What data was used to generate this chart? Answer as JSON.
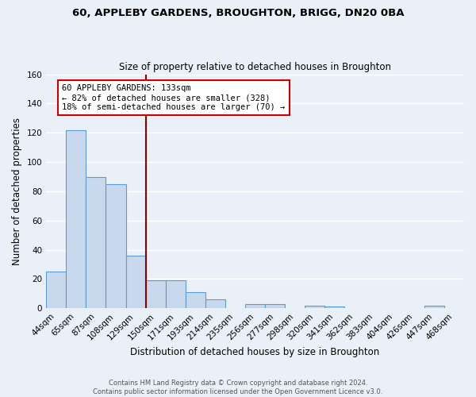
{
  "title": "60, APPLEBY GARDENS, BROUGHTON, BRIGG, DN20 0BA",
  "subtitle": "Size of property relative to detached houses in Broughton",
  "xlabel": "Distribution of detached houses by size in Broughton",
  "ylabel": "Number of detached properties",
  "footer_line1": "Contains HM Land Registry data © Crown copyright and database right 2024.",
  "footer_line2": "Contains public sector information licensed under the Open Government Licence v3.0.",
  "categories": [
    "44sqm",
    "65sqm",
    "87sqm",
    "108sqm",
    "129sqm",
    "150sqm",
    "171sqm",
    "193sqm",
    "214sqm",
    "235sqm",
    "256sqm",
    "277sqm",
    "298sqm",
    "320sqm",
    "341sqm",
    "362sqm",
    "383sqm",
    "404sqm",
    "426sqm",
    "447sqm",
    "468sqm"
  ],
  "values": [
    25,
    122,
    90,
    85,
    36,
    19,
    19,
    11,
    6,
    0,
    3,
    3,
    0,
    2,
    1,
    0,
    0,
    0,
    0,
    2,
    0
  ],
  "bar_color": "#c9d9ed",
  "bar_edge_color": "#5b9bd5",
  "background_color": "#eaf0f8",
  "grid_color": "#ffffff",
  "vline_x": 4.5,
  "vline_color": "#8b0000",
  "annotation_text": "60 APPLEBY GARDENS: 133sqm\n← 82% of detached houses are smaller (328)\n18% of semi-detached houses are larger (70) →",
  "annotation_box_color": "#ffffff",
  "annotation_box_edge_color": "#cc0000",
  "ylim": [
    0,
    160
  ],
  "yticks": [
    0,
    20,
    40,
    60,
    80,
    100,
    120,
    140,
    160
  ]
}
